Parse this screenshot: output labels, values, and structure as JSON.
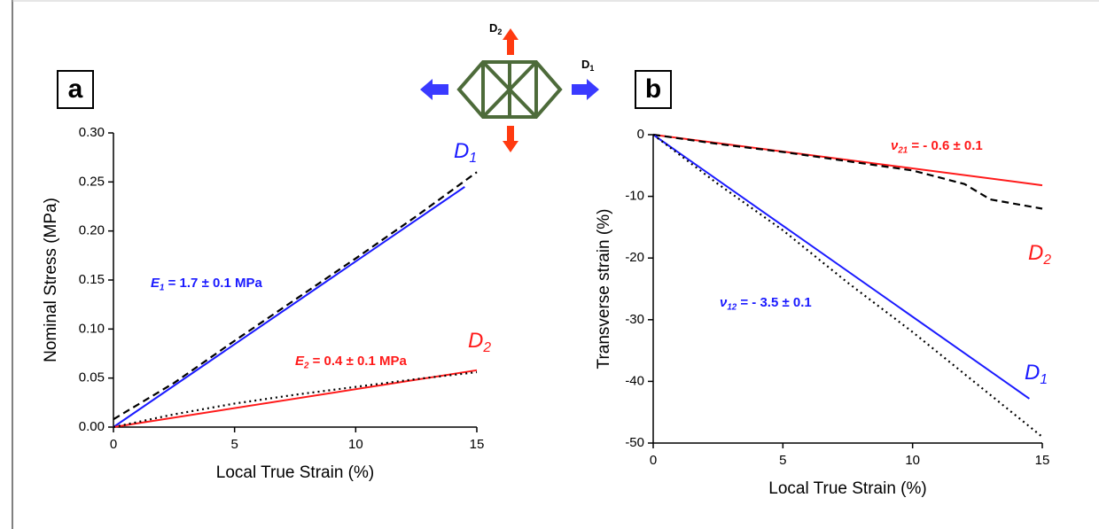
{
  "diagram": {
    "labels": [
      {
        "main": "D",
        "sub": "2"
      },
      {
        "main": "D",
        "sub": "1"
      }
    ]
  },
  "chart_data": [
    {
      "type": "line",
      "panel_label": "a",
      "xlabel": "Local True Strain (%)",
      "ylabel": "Nominal Stress (MPa)",
      "xlim": [
        0,
        15
      ],
      "ylim": [
        0,
        0.3
      ],
      "xticks": [
        0,
        5,
        10,
        15
      ],
      "yticks": [
        {
          "value": 0,
          "label": "0.00"
        },
        {
          "value": 0.05,
          "label": "0.05"
        },
        {
          "value": 0.1,
          "label": "0.10"
        },
        {
          "value": 0.15,
          "label": "0.15"
        },
        {
          "value": 0.2,
          "label": "0.20"
        },
        {
          "value": 0.25,
          "label": "0.25"
        },
        {
          "value": 0.3,
          "label": "0.30"
        }
      ],
      "series": [
        {
          "color": "#1a1aff",
          "style": "solid",
          "x": [
            0,
            14.5
          ],
          "values": [
            0,
            0.245
          ]
        },
        {
          "color": "#000000",
          "style": "dashed",
          "x": [
            0,
            2.5,
            5,
            7.5,
            10,
            12.5,
            15
          ],
          "values": [
            0.008,
            0.045,
            0.088,
            0.13,
            0.172,
            0.215,
            0.26
          ]
        },
        {
          "color": "#ff1a1a",
          "style": "solid",
          "x": [
            0,
            15
          ],
          "values": [
            0,
            0.058
          ]
        },
        {
          "color": "#000000",
          "style": "dotted",
          "x": [
            0,
            2.5,
            5,
            7.5,
            10,
            12.5,
            15
          ],
          "values": [
            0,
            0.013,
            0.024,
            0.033,
            0.041,
            0.049,
            0.056
          ]
        }
      ],
      "annotations": [
        {
          "main": "D",
          "sub": "1",
          "rest": "",
          "color": "#1a1aff",
          "italic": true
        },
        {
          "main": "E",
          "sub": "1",
          "rest": " = 1.7 ± 0.1 MPa",
          "color": "#1a1aff",
          "italic": false
        },
        {
          "main": "E",
          "sub": "2",
          "rest": " = 0.4 ± 0.1  MPa",
          "color": "#ff1a1a",
          "italic": false
        },
        {
          "main": "D",
          "sub": "2",
          "rest": "",
          "color": "#ff1a1a",
          "italic": true
        }
      ]
    },
    {
      "type": "line",
      "panel_label": "b",
      "xlabel": "Local True Strain (%)",
      "ylabel": "Transverse strain (%)",
      "xlim": [
        0,
        15
      ],
      "ylim": [
        -50,
        0
      ],
      "xticks": [
        0,
        5,
        10,
        15
      ],
      "yticks": [
        0,
        -10,
        -20,
        -30,
        -40,
        -50
      ],
      "series": [
        {
          "color": "#ff1a1a",
          "style": "solid",
          "x": [
            0,
            15
          ],
          "values": [
            0,
            -8.2
          ]
        },
        {
          "color": "#000000",
          "style": "dashed",
          "x": [
            0,
            2.5,
            5,
            7.5,
            10,
            12,
            13,
            15
          ],
          "values": [
            0,
            -1.5,
            -2.8,
            -4.3,
            -5.8,
            -8,
            -10.5,
            -12
          ]
        },
        {
          "color": "#1a1aff",
          "style": "solid",
          "x": [
            0,
            14.5
          ],
          "values": [
            0,
            -42.8
          ]
        },
        {
          "color": "#000000",
          "style": "dotted",
          "x": [
            0,
            2.5,
            5,
            7.5,
            10,
            12.5,
            15
          ],
          "values": [
            0,
            -8,
            -15.5,
            -24,
            -32,
            -40.5,
            -49
          ]
        }
      ],
      "annotations": [
        {
          "main": "ν",
          "sub": "21",
          "rest": " = - 0.6  ± 0.1",
          "color": "#ff1a1a",
          "italic": false
        },
        {
          "main": "D",
          "sub": "2",
          "rest": "",
          "color": "#ff1a1a",
          "italic": true
        },
        {
          "main": "ν",
          "sub": "12",
          "rest": " = - 3.5 ± 0.1",
          "color": "#1a1aff",
          "italic": false
        },
        {
          "main": "D",
          "sub": "1",
          "rest": "",
          "color": "#1a1aff",
          "italic": true
        }
      ]
    }
  ]
}
